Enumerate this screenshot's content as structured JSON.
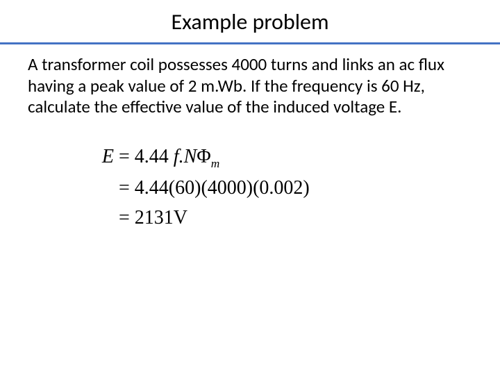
{
  "slide": {
    "title": "Example problem",
    "underline_color": "#4472c4",
    "body": "A transformer coil possesses 4000 turns  and links an ac flux having a peak value of 2 m.Wb. If the frequency is 60 Hz, calculate the effective value of the induced voltage E.",
    "equation": {
      "lhs": "E",
      "line1_prefix": "= 4.44",
      "line1_vars": " f.N",
      "phi": "Φ",
      "phi_sub": "m",
      "line2": "= 4.44(60)(4000)(0.002)",
      "line3": "= 2131V"
    },
    "colors": {
      "text": "#000000",
      "background": "#ffffff"
    },
    "fontsize": {
      "title": 32,
      "body": 25,
      "equation": 28
    }
  }
}
